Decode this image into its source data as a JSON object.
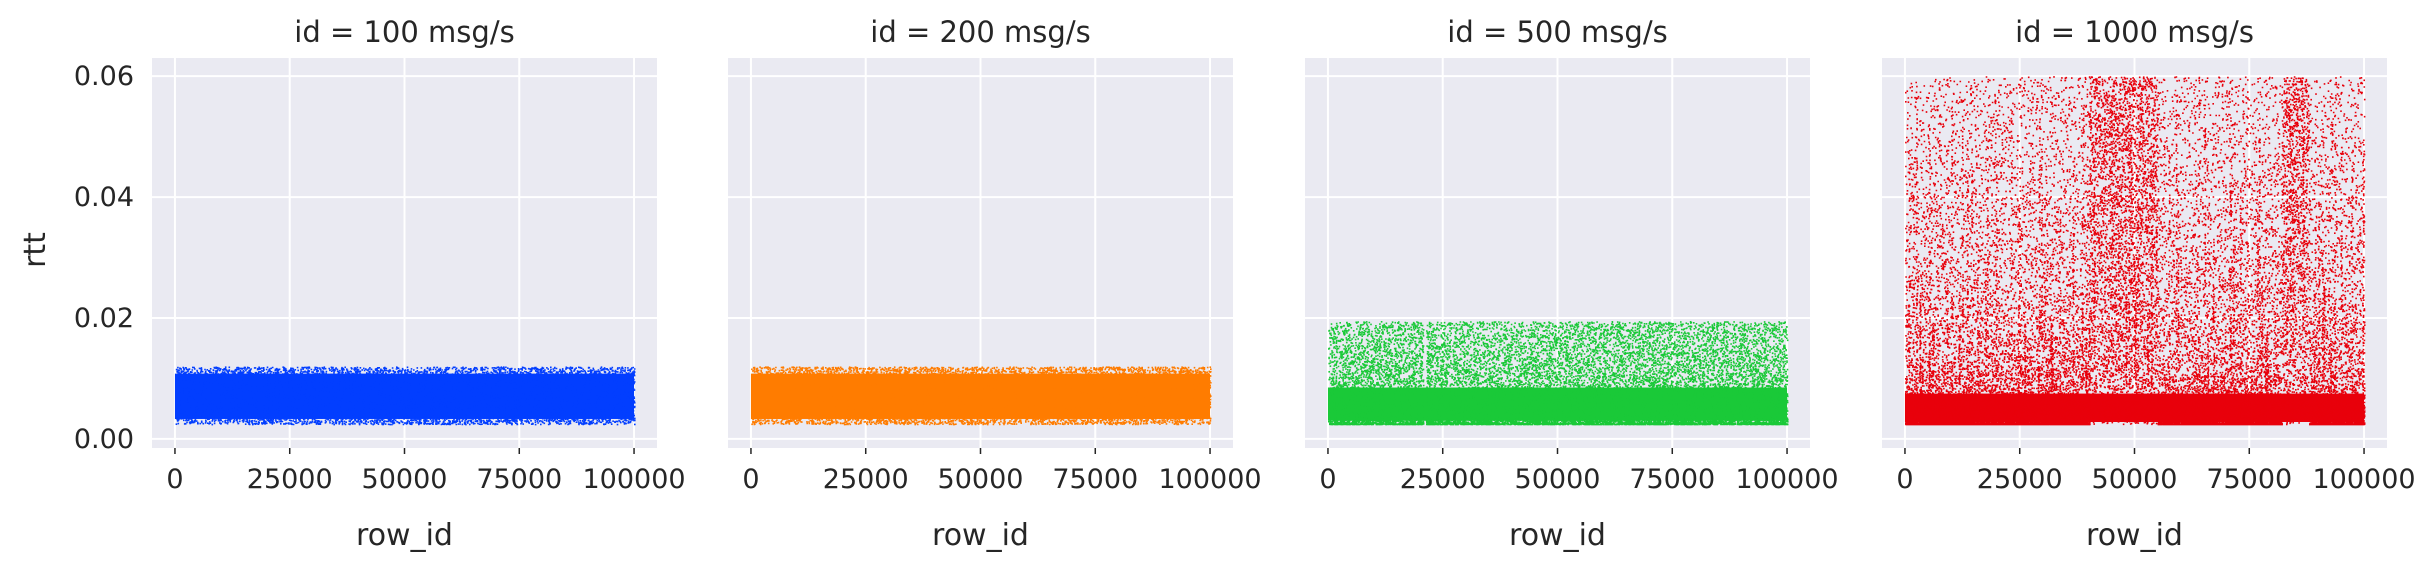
{
  "chart_data": {
    "type": "scatter",
    "layout": "facet-grid",
    "facet_variable": "id",
    "xlabel": "row_id",
    "ylabel": "rtt",
    "xlim": [
      -5000,
      105000
    ],
    "ylim": [
      -0.0015,
      0.063
    ],
    "xticks": [
      0,
      25000,
      50000,
      75000,
      100000
    ],
    "xtick_labels": [
      "0",
      "25000",
      "50000",
      "75000",
      "100000"
    ],
    "yticks": [
      0.0,
      0.02,
      0.04,
      0.06
    ],
    "ytick_labels": [
      "0.00",
      "0.02",
      "0.04",
      "0.06"
    ],
    "grid": true,
    "background": "#eaeaf2",
    "facets": [
      {
        "title": "id = 100 msg/s",
        "color": "#023eff",
        "x_range": [
          0,
          100000
        ],
        "rtt_base_range": [
          0.0025,
          0.012
        ],
        "rtt_max": 0.012,
        "approx_points": 100000
      },
      {
        "title": "id = 200 msg/s",
        "color": "#ff7c00",
        "x_range": [
          0,
          100000
        ],
        "rtt_base_range": [
          0.0025,
          0.012
        ],
        "rtt_max": 0.012,
        "approx_points": 100000
      },
      {
        "title": "id = 500 msg/s",
        "color": "#1ac938",
        "x_range": [
          0,
          100000
        ],
        "rtt_base_range": [
          0.0025,
          0.009
        ],
        "rtt_max": 0.0195,
        "gap_near_x": 21000,
        "approx_points": 100000
      },
      {
        "title": "id = 1000 msg/s",
        "color": "#e8000b",
        "x_range": [
          0,
          100000
        ],
        "rtt_base_range": [
          0.0025,
          0.012
        ],
        "rtt_max": 0.06,
        "high_density_regions": [
          [
            40000,
            55000
          ],
          [
            82000,
            88000
          ]
        ],
        "approx_points": 100000
      }
    ]
  }
}
